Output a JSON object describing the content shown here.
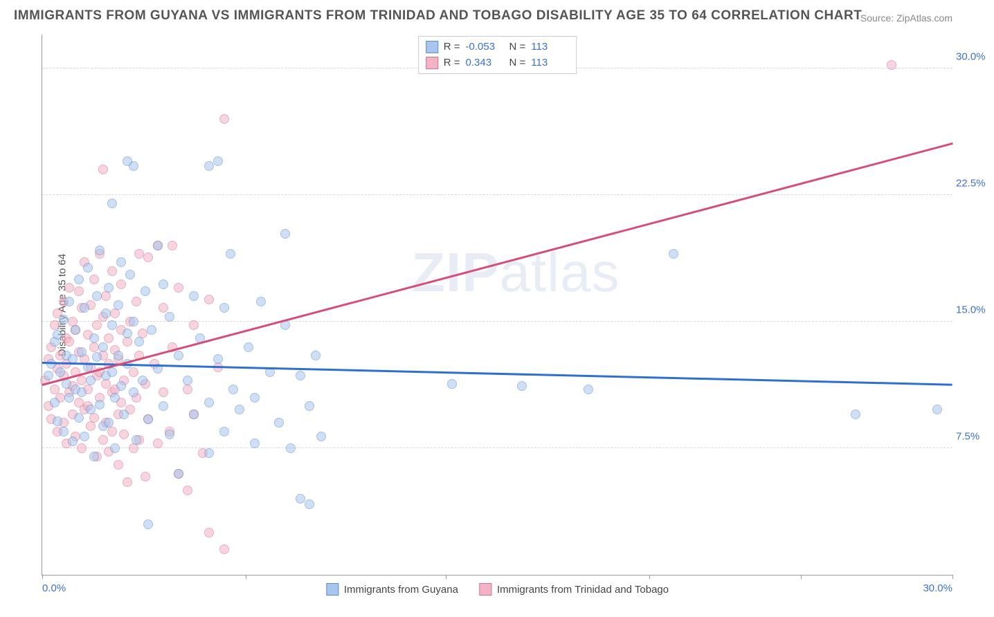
{
  "title": "IMMIGRANTS FROM GUYANA VS IMMIGRANTS FROM TRINIDAD AND TOBAGO DISABILITY AGE 35 TO 64 CORRELATION CHART",
  "source_label": "Source:",
  "source_value": "ZipAtlas.com",
  "ylabel": "Disability Age 35 to 64",
  "watermark_a": "ZIP",
  "watermark_b": "atlas",
  "chart": {
    "type": "scatter",
    "xlim": [
      0,
      30
    ],
    "ylim": [
      0,
      32
    ],
    "xtick_marks": [
      0,
      6.7,
      13.3,
      20,
      25,
      30
    ],
    "ytick_values": [
      7.5,
      15.0,
      22.5,
      30.0
    ],
    "ytick_labels": [
      "7.5%",
      "15.0%",
      "22.5%",
      "30.0%"
    ],
    "xtick_left": "0.0%",
    "xtick_right": "30.0%",
    "grid_color": "#d8d8d8",
    "axis_color": "#999999",
    "background_color": "#ffffff",
    "tick_label_color": "#3b6fd6",
    "series": [
      {
        "name": "Immigrants from Guyana",
        "fill": "#a8c5ec",
        "stroke": "#5b8dd6",
        "line_color": "#2f6fd0",
        "R": "-0.053",
        "N": "113",
        "trend": {
          "x1": 0,
          "y1": 12.5,
          "x2": 30,
          "y2": 11.2
        },
        "points": [
          [
            0.2,
            11.8
          ],
          [
            0.3,
            12.5
          ],
          [
            0.4,
            10.2
          ],
          [
            0.4,
            13.8
          ],
          [
            0.5,
            9.1
          ],
          [
            0.5,
            14.2
          ],
          [
            0.6,
            12.0
          ],
          [
            0.7,
            8.5
          ],
          [
            0.7,
            15.1
          ],
          [
            0.8,
            11.3
          ],
          [
            0.8,
            13.0
          ],
          [
            0.9,
            10.5
          ],
          [
            0.9,
            16.2
          ],
          [
            1.0,
            12.8
          ],
          [
            1.0,
            7.9
          ],
          [
            1.1,
            14.5
          ],
          [
            1.1,
            11.0
          ],
          [
            1.2,
            9.3
          ],
          [
            1.2,
            17.5
          ],
          [
            1.3,
            13.2
          ],
          [
            1.3,
            10.8
          ],
          [
            1.4,
            15.8
          ],
          [
            1.4,
            8.2
          ],
          [
            1.5,
            12.3
          ],
          [
            1.5,
            18.2
          ],
          [
            1.6,
            11.5
          ],
          [
            1.6,
            9.8
          ],
          [
            1.7,
            14.0
          ],
          [
            1.7,
            7.0
          ],
          [
            1.8,
            16.5
          ],
          [
            1.8,
            12.9
          ],
          [
            1.9,
            10.1
          ],
          [
            1.9,
            19.2
          ],
          [
            2.0,
            13.5
          ],
          [
            2.0,
            8.8
          ],
          [
            2.1,
            15.5
          ],
          [
            2.1,
            11.8
          ],
          [
            2.2,
            9.0
          ],
          [
            2.2,
            17.0
          ],
          [
            2.3,
            12.0
          ],
          [
            2.3,
            14.8
          ],
          [
            2.4,
            10.5
          ],
          [
            2.4,
            7.5
          ],
          [
            2.5,
            16.0
          ],
          [
            2.5,
            13.0
          ],
          [
            2.6,
            11.2
          ],
          [
            2.6,
            18.5
          ],
          [
            2.7,
            9.5
          ],
          [
            2.8,
            14.3
          ],
          [
            2.8,
            12.5
          ],
          [
            2.9,
            17.8
          ],
          [
            3.0,
            10.8
          ],
          [
            3.0,
            15.0
          ],
          [
            3.1,
            8.0
          ],
          [
            3.2,
            13.8
          ],
          [
            3.3,
            11.5
          ],
          [
            3.4,
            16.8
          ],
          [
            3.5,
            9.2
          ],
          [
            3.5,
            3.0
          ],
          [
            3.6,
            14.5
          ],
          [
            3.8,
            12.2
          ],
          [
            3.8,
            19.5
          ],
          [
            4.0,
            10.0
          ],
          [
            4.0,
            17.2
          ],
          [
            4.2,
            8.3
          ],
          [
            4.2,
            15.3
          ],
          [
            4.5,
            13.0
          ],
          [
            4.5,
            6.0
          ],
          [
            4.8,
            11.5
          ],
          [
            5.0,
            9.5
          ],
          [
            5.0,
            16.5
          ],
          [
            5.2,
            14.0
          ],
          [
            5.5,
            10.2
          ],
          [
            5.5,
            7.2
          ],
          [
            5.8,
            12.8
          ],
          [
            6.0,
            8.5
          ],
          [
            6.0,
            15.8
          ],
          [
            6.3,
            11.0
          ],
          [
            6.5,
            9.8
          ],
          [
            6.8,
            13.5
          ],
          [
            7.0,
            7.8
          ],
          [
            7.0,
            10.5
          ],
          [
            7.2,
            16.2
          ],
          [
            7.5,
            12.0
          ],
          [
            7.8,
            9.0
          ],
          [
            8.0,
            14.8
          ],
          [
            8.0,
            20.2
          ],
          [
            8.2,
            7.5
          ],
          [
            8.5,
            11.8
          ],
          [
            8.5,
            4.5
          ],
          [
            8.8,
            10.0
          ],
          [
            9.0,
            13.0
          ],
          [
            9.2,
            8.2
          ],
          [
            2.3,
            22.0
          ],
          [
            3.0,
            24.2
          ],
          [
            2.8,
            24.5
          ],
          [
            5.5,
            24.2
          ],
          [
            5.8,
            24.5
          ],
          [
            6.2,
            19.0
          ],
          [
            8.8,
            4.2
          ],
          [
            13.5,
            11.3
          ],
          [
            15.8,
            11.2
          ],
          [
            18.0,
            11.0
          ],
          [
            20.8,
            19.0
          ],
          [
            26.8,
            9.5
          ],
          [
            29.5,
            9.8
          ]
        ]
      },
      {
        "name": "Immigrants from Trinidad and Tobago",
        "fill": "#f2b4c4",
        "stroke": "#d86f8f",
        "line_color": "#d64d7a",
        "R": "0.343",
        "N": "113",
        "trend": {
          "x1": 0,
          "y1": 11.2,
          "x2": 30,
          "y2": 25.5
        },
        "points": [
          [
            0.1,
            11.5
          ],
          [
            0.2,
            12.8
          ],
          [
            0.2,
            10.0
          ],
          [
            0.3,
            13.5
          ],
          [
            0.3,
            9.2
          ],
          [
            0.4,
            11.0
          ],
          [
            0.4,
            14.8
          ],
          [
            0.5,
            12.2
          ],
          [
            0.5,
            8.5
          ],
          [
            0.5,
            15.5
          ],
          [
            0.6,
            10.5
          ],
          [
            0.6,
            13.0
          ],
          [
            0.7,
            11.8
          ],
          [
            0.7,
            9.0
          ],
          [
            0.7,
            16.2
          ],
          [
            0.8,
            12.5
          ],
          [
            0.8,
            14.0
          ],
          [
            0.8,
            7.8
          ],
          [
            0.9,
            10.8
          ],
          [
            0.9,
            13.8
          ],
          [
            0.9,
            17.0
          ],
          [
            1.0,
            11.2
          ],
          [
            1.0,
            9.5
          ],
          [
            1.0,
            15.0
          ],
          [
            1.1,
            12.0
          ],
          [
            1.1,
            8.2
          ],
          [
            1.1,
            14.5
          ],
          [
            1.2,
            10.2
          ],
          [
            1.2,
            16.8
          ],
          [
            1.2,
            13.2
          ],
          [
            1.3,
            11.5
          ],
          [
            1.3,
            7.5
          ],
          [
            1.3,
            15.8
          ],
          [
            1.4,
            12.8
          ],
          [
            1.4,
            9.8
          ],
          [
            1.4,
            18.5
          ],
          [
            1.5,
            10.0
          ],
          [
            1.5,
            14.2
          ],
          [
            1.5,
            11.0
          ],
          [
            1.6,
            8.8
          ],
          [
            1.6,
            16.0
          ],
          [
            1.6,
            12.3
          ],
          [
            1.7,
            13.5
          ],
          [
            1.7,
            9.3
          ],
          [
            1.7,
            17.5
          ],
          [
            1.8,
            11.8
          ],
          [
            1.8,
            7.0
          ],
          [
            1.8,
            14.8
          ],
          [
            1.9,
            10.5
          ],
          [
            1.9,
            12.0
          ],
          [
            1.9,
            19.0
          ],
          [
            2.0,
            8.0
          ],
          [
            2.0,
            15.3
          ],
          [
            2.0,
            13.0
          ],
          [
            2.1,
            11.3
          ],
          [
            2.1,
            9.0
          ],
          [
            2.1,
            16.5
          ],
          [
            2.2,
            12.5
          ],
          [
            2.2,
            7.3
          ],
          [
            2.2,
            14.0
          ],
          [
            2.3,
            10.8
          ],
          [
            2.3,
            18.0
          ],
          [
            2.3,
            8.5
          ],
          [
            2.4,
            13.3
          ],
          [
            2.4,
            11.0
          ],
          [
            2.4,
            15.5
          ],
          [
            2.5,
            9.5
          ],
          [
            2.5,
            12.8
          ],
          [
            2.5,
            6.5
          ],
          [
            2.6,
            14.5
          ],
          [
            2.6,
            10.2
          ],
          [
            2.6,
            17.2
          ],
          [
            2.7,
            11.5
          ],
          [
            2.7,
            8.3
          ],
          [
            2.8,
            13.8
          ],
          [
            2.8,
            5.5
          ],
          [
            2.9,
            15.0
          ],
          [
            2.9,
            9.8
          ],
          [
            3.0,
            12.0
          ],
          [
            3.0,
            7.5
          ],
          [
            3.1,
            16.2
          ],
          [
            3.1,
            10.5
          ],
          [
            3.2,
            13.0
          ],
          [
            3.2,
            8.0
          ],
          [
            3.3,
            14.3
          ],
          [
            3.4,
            11.3
          ],
          [
            3.4,
            5.8
          ],
          [
            3.5,
            9.2
          ],
          [
            3.5,
            18.8
          ],
          [
            3.7,
            12.5
          ],
          [
            3.8,
            7.8
          ],
          [
            3.8,
            19.5
          ],
          [
            4.0,
            10.8
          ],
          [
            4.0,
            15.8
          ],
          [
            4.2,
            8.5
          ],
          [
            4.3,
            13.5
          ],
          [
            4.5,
            6.0
          ],
          [
            4.5,
            17.0
          ],
          [
            4.8,
            11.0
          ],
          [
            4.8,
            5.0
          ],
          [
            5.0,
            9.5
          ],
          [
            5.0,
            14.8
          ],
          [
            5.3,
            7.2
          ],
          [
            5.5,
            16.3
          ],
          [
            5.5,
            2.5
          ],
          [
            5.8,
            12.3
          ],
          [
            6.0,
            1.5
          ],
          [
            2.0,
            24.0
          ],
          [
            3.2,
            19.0
          ],
          [
            4.3,
            19.5
          ],
          [
            6.0,
            27.0
          ],
          [
            28.0,
            30.2
          ]
        ]
      }
    ]
  },
  "legend_top": {
    "R_label": "R =",
    "N_label": "N ="
  }
}
